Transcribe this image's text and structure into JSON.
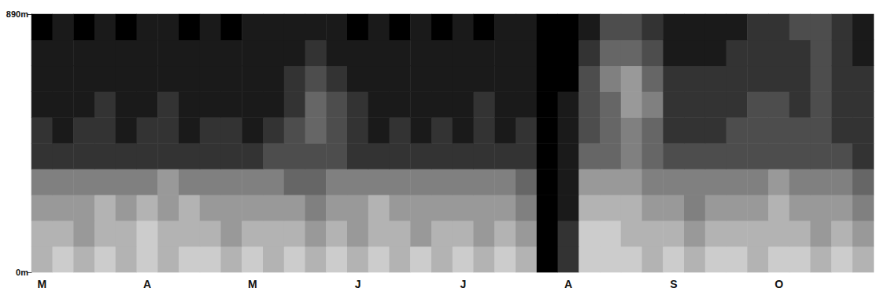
{
  "chart_data": {
    "type": "heatmap",
    "categories": [
      "M",
      null,
      null,
      null,
      null,
      "A",
      null,
      null,
      null,
      null,
      "M",
      null,
      null,
      null,
      null,
      "J",
      null,
      null,
      null,
      null,
      "J",
      null,
      null,
      null,
      null,
      "A",
      null,
      null,
      null,
      null,
      "S",
      null,
      null,
      null,
      null,
      "O",
      null,
      null,
      null,
      null
    ],
    "y_bins": [
      0,
      89,
      178,
      267,
      356,
      445,
      534,
      623,
      712,
      801,
      890
    ],
    "ylim": [
      0,
      890
    ],
    "yticks": [
      {
        "value": 0,
        "label": "0m"
      },
      {
        "value": 890,
        "label": "890m"
      }
    ],
    "zlim": [
      0,
      10
    ],
    "colors": [
      "#000000",
      "#ffffff"
    ],
    "cells": [
      [
        7,
        8,
        7,
        8,
        7,
        8,
        7,
        8,
        8,
        7,
        8,
        7,
        8,
        7,
        8,
        7,
        8,
        7,
        8,
        7,
        8,
        7,
        8,
        7,
        0,
        2,
        8,
        8,
        8,
        7,
        8,
        7,
        8,
        8,
        7,
        8,
        8,
        7,
        8,
        7
      ],
      [
        7,
        7,
        6,
        7,
        7,
        8,
        7,
        7,
        7,
        6,
        7,
        7,
        7,
        6,
        7,
        6,
        7,
        7,
        6,
        7,
        7,
        6,
        7,
        6,
        0,
        2,
        8,
        8,
        7,
        7,
        7,
        6,
        7,
        7,
        7,
        7,
        7,
        6,
        7,
        6
      ],
      [
        6,
        6,
        6,
        7,
        6,
        7,
        6,
        7,
        6,
        6,
        6,
        6,
        6,
        5,
        6,
        6,
        7,
        6,
        6,
        6,
        6,
        6,
        6,
        5,
        0,
        1,
        7,
        7,
        7,
        6,
        6,
        5,
        6,
        6,
        6,
        7,
        6,
        6,
        6,
        5
      ],
      [
        5,
        5,
        5,
        5,
        5,
        5,
        6,
        5,
        5,
        5,
        5,
        5,
        4,
        4,
        5,
        5,
        5,
        5,
        5,
        5,
        5,
        5,
        5,
        4,
        0,
        1,
        6,
        6,
        6,
        5,
        5,
        5,
        5,
        5,
        5,
        6,
        5,
        5,
        5,
        4
      ],
      [
        2,
        2,
        2,
        2,
        2,
        2,
        2,
        2,
        2,
        2,
        2,
        3,
        3,
        3,
        3,
        2,
        2,
        2,
        2,
        2,
        2,
        2,
        2,
        2,
        0,
        1,
        4,
        4,
        5,
        4,
        3,
        3,
        3,
        3,
        3,
        3,
        3,
        3,
        3,
        2
      ],
      [
        2,
        1,
        2,
        2,
        1,
        2,
        2,
        1,
        2,
        2,
        1,
        2,
        3,
        4,
        3,
        2,
        1,
        2,
        1,
        2,
        1,
        2,
        1,
        2,
        0,
        1,
        3,
        4,
        5,
        4,
        2,
        2,
        2,
        3,
        3,
        3,
        3,
        3,
        2,
        2
      ],
      [
        1,
        1,
        1,
        2,
        1,
        1,
        2,
        1,
        1,
        1,
        1,
        1,
        2,
        4,
        3,
        2,
        1,
        1,
        1,
        1,
        1,
        2,
        1,
        1,
        0,
        1,
        3,
        4,
        6,
        5,
        2,
        2,
        2,
        2,
        3,
        3,
        2,
        3,
        2,
        2
      ],
      [
        1,
        1,
        1,
        1,
        1,
        1,
        1,
        1,
        1,
        1,
        1,
        1,
        2,
        3,
        2,
        1,
        1,
        1,
        1,
        1,
        1,
        1,
        1,
        1,
        0,
        0,
        3,
        5,
        6,
        4,
        2,
        2,
        2,
        2,
        2,
        2,
        2,
        3,
        2,
        2
      ],
      [
        1,
        1,
        1,
        1,
        1,
        1,
        1,
        1,
        1,
        1,
        1,
        1,
        1,
        2,
        1,
        1,
        1,
        1,
        1,
        1,
        1,
        1,
        1,
        1,
        0,
        0,
        2,
        4,
        4,
        3,
        1,
        1,
        1,
        2,
        2,
        2,
        2,
        3,
        2,
        1
      ],
      [
        0,
        1,
        0,
        1,
        0,
        1,
        1,
        0,
        1,
        0,
        1,
        1,
        1,
        1,
        1,
        0,
        1,
        0,
        1,
        0,
        1,
        0,
        1,
        1,
        0,
        0,
        1,
        3,
        3,
        2,
        1,
        1,
        1,
        1,
        2,
        2,
        3,
        3,
        2,
        1
      ]
    ]
  }
}
